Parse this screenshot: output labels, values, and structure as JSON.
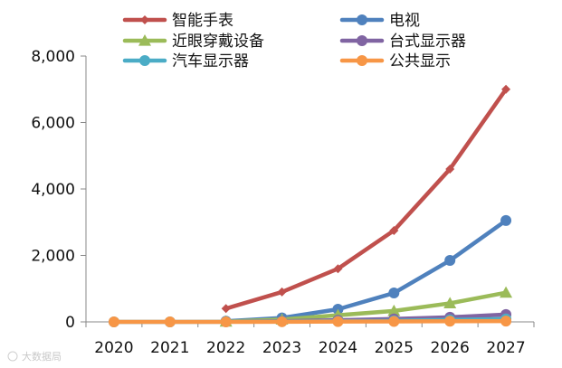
{
  "chart_data": {
    "type": "line",
    "title": "",
    "xlabel": "",
    "ylabel": "",
    "categories": [
      "2020",
      "2021",
      "2022",
      "2023",
      "2024",
      "2025",
      "2026",
      "2027"
    ],
    "ylim": [
      0,
      8000
    ],
    "yticks": [
      0,
      2000,
      4000,
      6000,
      8000
    ],
    "ytick_labels": [
      "0",
      "2,000",
      "4,000",
      "6,000",
      "8,000"
    ],
    "grid": false,
    "legend_position": "top",
    "series": [
      {
        "name": "智能手表",
        "color": "#c0504d",
        "marker": "diamond",
        "values": [
          null,
          null,
          400,
          900,
          1600,
          2750,
          4600,
          7000
        ]
      },
      {
        "name": "电视",
        "color": "#4f81bd",
        "marker": "circle",
        "values": [
          null,
          null,
          20,
          120,
          380,
          870,
          1850,
          3050
        ]
      },
      {
        "name": "近眼穿戴设备",
        "color": "#9bbb59",
        "marker": "triangle",
        "values": [
          null,
          null,
          10,
          70,
          200,
          330,
          560,
          880
        ]
      },
      {
        "name": "台式显示器",
        "color": "#8064a2",
        "marker": "circle",
        "values": [
          null,
          null,
          5,
          20,
          50,
          90,
          140,
          220
        ]
      },
      {
        "name": "汽车显示器",
        "color": "#4bacc6",
        "marker": "circle",
        "values": [
          0,
          0,
          5,
          10,
          20,
          35,
          60,
          90
        ]
      },
      {
        "name": "公共显示",
        "color": "#f79646",
        "marker": "circle",
        "values": [
          0,
          0,
          0,
          5,
          10,
          15,
          20,
          25
        ]
      }
    ]
  },
  "watermark": {
    "text": "大数据局"
  }
}
